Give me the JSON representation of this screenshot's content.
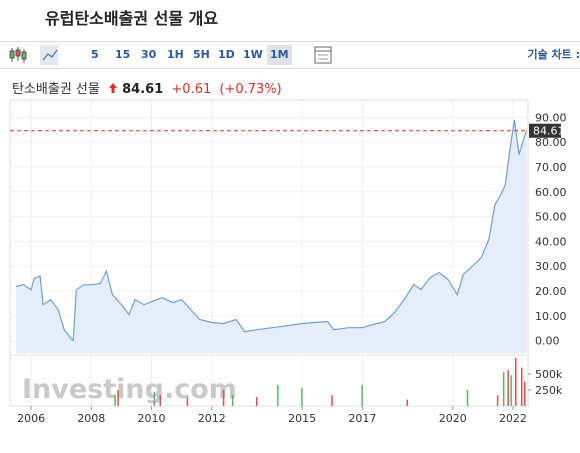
{
  "header": {
    "title": "유럽탄소배출권 선물 개요"
  },
  "toolbar": {
    "intervals": [
      "5",
      "15",
      "30",
      "1H",
      "5H",
      "1D",
      "1W",
      "1M"
    ],
    "active_index": 7,
    "technical": "기술 차트 :"
  },
  "quote": {
    "name": "탄소배출권 선물",
    "price": "84.61",
    "change": "+0.61",
    "change_pct": "(+0.73%)"
  },
  "chart_data": {
    "type": "area",
    "watermark": "Investing.com",
    "color": "#6f9fd8",
    "fill": "#e4edf8",
    "x": [
      2005.5,
      2005.75,
      2006.0,
      2006.1,
      2006.3,
      2006.4,
      2006.65,
      2006.9,
      2007.1,
      2007.3,
      2007.4,
      2007.5,
      2007.75,
      2008.0,
      2008.3,
      2008.5,
      2008.7,
      2009.0,
      2009.25,
      2009.45,
      2009.75,
      2010.0,
      2010.35,
      2010.7,
      2011.0,
      2011.3,
      2011.6,
      2012.0,
      2012.4,
      2012.8,
      2013.1,
      2013.5,
      2014.0,
      2014.5,
      2015.0,
      2015.4,
      2015.85,
      2016.05,
      2016.55,
      2017.0,
      2017.35,
      2017.75,
      2018.1,
      2018.45,
      2018.7,
      2018.95,
      2019.25,
      2019.55,
      2019.85,
      2020.15,
      2020.35,
      2020.6,
      2020.95,
      2021.2,
      2021.4,
      2021.6,
      2021.75,
      2021.9,
      2022.05,
      2022.2,
      2022.35,
      2022.45
    ],
    "values": [
      21.8,
      22.5,
      20.5,
      25,
      26,
      14.5,
      16.5,
      12.5,
      4.4,
      1.2,
      0.1,
      20.5,
      22.5,
      22.5,
      23,
      28,
      18.5,
      14.5,
      10.5,
      16.5,
      14.5,
      15.7,
      17.3,
      15.3,
      16.5,
      12.5,
      8.5,
      7.3,
      6.9,
      8.5,
      3.6,
      4.4,
      5.2,
      6,
      6.9,
      7.3,
      7.7,
      4.4,
      5.2,
      5.2,
      6.5,
      7.7,
      11.7,
      17.7,
      22.6,
      20.6,
      25.4,
      27.4,
      24.6,
      18.5,
      26.6,
      29.4,
      33.5,
      40.7,
      54.8,
      58.9,
      62.9,
      77,
      89,
      75,
      81,
      84.61
    ],
    "last": 84.61,
    "last_color": "#d9302c",
    "xlim": [
      2005.3,
      2022.5
    ],
    "xticks": [
      2006,
      2008,
      2010,
      2012,
      2015,
      2017,
      2020,
      2022
    ],
    "ylim": [
      -5,
      97
    ],
    "yticks": [
      {
        "value": 90,
        "label": "90.00"
      },
      {
        "value": 80,
        "label": "80.00"
      },
      {
        "value": 70,
        "label": "70.00"
      },
      {
        "value": 60,
        "label": "60.00"
      },
      {
        "value": 50,
        "label": "50.00"
      },
      {
        "value": 40,
        "label": "40.00"
      },
      {
        "value": 30,
        "label": "30.00"
      },
      {
        "value": 20,
        "label": "20.00"
      },
      {
        "value": 10,
        "label": "10.00"
      },
      {
        "value": 0,
        "label": "0.00"
      }
    ],
    "grid": true,
    "volume": {
      "ylim": [
        0,
        780000
      ],
      "yticks": [
        {
          "value": 500000,
          "label": "500k"
        },
        {
          "value": 250000,
          "label": "250k"
        }
      ],
      "up": {
        "color": "#5cb85c",
        "x": [
          2008.8,
          2010.1,
          2012.7,
          2014.2,
          2015.0,
          2017.0,
          2020.5,
          2021.7,
          2021.95
        ],
        "values": [
          170000,
          220000,
          170000,
          330000,
          280000,
          330000,
          250000,
          530000,
          480000
        ]
      },
      "down": {
        "color": "#d9534f",
        "x": [
          2008.9,
          2010.3,
          2011.2,
          2012.4,
          2013.5,
          2016.0,
          2018.5,
          2021.5,
          2021.85,
          2022.1,
          2022.3,
          2022.4
        ],
        "values": [
          250000,
          170000,
          130000,
          250000,
          140000,
          170000,
          100000,
          170000,
          560000,
          750000,
          600000,
          380000
        ]
      }
    }
  }
}
